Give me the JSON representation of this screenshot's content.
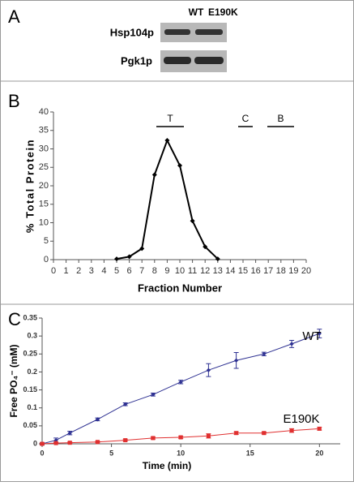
{
  "panel_labels": [
    "A",
    "B",
    "C"
  ],
  "blot": {
    "lanes": [
      "WT",
      "E190K"
    ],
    "rows": [
      "Hsp104p",
      "Pgk1p"
    ]
  },
  "chart_data": [
    {
      "type": "line",
      "xlabel": "Fraction Number",
      "ylabel": "% Total Protein",
      "x": [
        5,
        6,
        7,
        8,
        9,
        10,
        11,
        12,
        13
      ],
      "series": [
        {
          "color": "#000000",
          "values": [
            0.2,
            0.8,
            3,
            23,
            32.3,
            25.5,
            10.5,
            3.5,
            0.2
          ]
        }
      ],
      "annotations": [
        "T",
        "C",
        "B"
      ],
      "xlim": [
        0,
        20
      ],
      "ylim": [
        0,
        40
      ],
      "xticks": [
        0,
        1,
        2,
        3,
        4,
        5,
        6,
        7,
        8,
        9,
        10,
        11,
        12,
        13,
        14,
        15,
        16,
        17,
        18,
        19,
        20
      ],
      "yticks": [
        0,
        5,
        10,
        15,
        20,
        25,
        30,
        35,
        40
      ]
    },
    {
      "type": "line",
      "xlabel": "Time (min)",
      "ylabel": "Free PO₄⁻ (mM)",
      "x": [
        0,
        1,
        2,
        4,
        6,
        8,
        10,
        12,
        14,
        16,
        18,
        20
      ],
      "series": [
        {
          "name": "WT",
          "color": "#2e3192",
          "values": [
            0,
            0.01,
            0.03,
            0.068,
            0.11,
            0.137,
            0.172,
            0.205,
            0.232,
            0.25,
            0.278,
            0.307
          ],
          "errors": [
            0.003,
            0.006,
            0.005,
            0.004,
            0.004,
            0.004,
            0.005,
            0.018,
            0.022,
            0.005,
            0.01,
            0.012
          ]
        },
        {
          "name": "E190K",
          "color": "#e03030",
          "values": [
            0,
            0.002,
            0.003,
            0.005,
            0.01,
            0.016,
            0.018,
            0.022,
            0.03,
            0.03,
            0.037,
            0.042
          ],
          "errors": [
            0.002,
            0.002,
            0.002,
            0.002,
            0.003,
            0.003,
            0.003,
            0.006,
            0.004,
            0.003,
            0.005,
            0.004
          ]
        }
      ],
      "xlim": [
        0,
        21.5
      ],
      "ylim": [
        0,
        0.35
      ],
      "xticks": [
        0,
        5,
        10,
        15,
        20
      ],
      "yticks": [
        0,
        0.05,
        0.1,
        0.15,
        0.2,
        0.25,
        0.3,
        0.35
      ]
    }
  ]
}
